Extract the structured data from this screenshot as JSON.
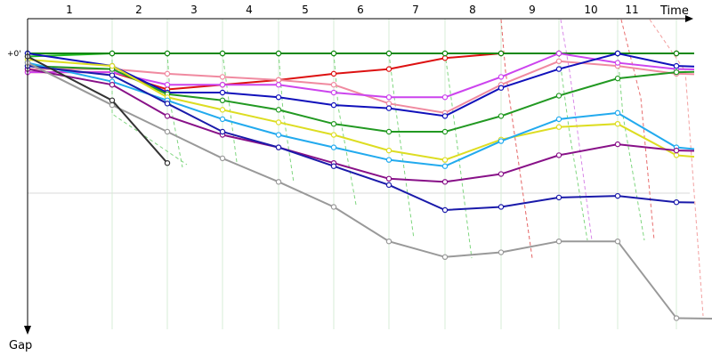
{
  "chart_data": {
    "type": "line",
    "xlabel": "Time",
    "ylabel": "Gap",
    "zero_label": "+0'",
    "lap_labels": [
      "1",
      "2",
      "3",
      "4",
      "5",
      "6",
      "7",
      "8",
      "9",
      "10",
      "11"
    ],
    "grid": true,
    "series": [
      {
        "color": "#22bb22",
        "values": [
          2,
          0,
          0,
          0,
          0,
          0,
          0,
          0,
          0,
          0,
          0,
          0
        ]
      },
      {
        "color": "#dd1111",
        "values": [
          12,
          12,
          23,
          20,
          17,
          13,
          10,
          3,
          0,
          0,
          0,
          0
        ]
      },
      {
        "color": "#118811",
        "values": [
          0,
          0,
          0,
          0,
          0,
          0,
          0,
          0,
          0,
          0,
          0,
          0
        ]
      },
      {
        "color": "#f08aa0",
        "values": [
          10,
          10,
          13,
          15,
          17,
          20,
          32,
          38,
          20,
          5,
          8,
          13
        ]
      },
      {
        "color": "#cc44ee",
        "values": [
          12,
          12,
          20,
          20,
          20,
          25,
          28,
          28,
          15,
          0,
          6,
          10
        ]
      },
      {
        "color": "#1111bb",
        "values": [
          0,
          8,
          25,
          25,
          28,
          33,
          35,
          40,
          22,
          10,
          0,
          8
        ]
      },
      {
        "color": "#229922",
        "values": [
          8,
          10,
          26,
          30,
          36,
          45,
          50,
          50,
          40,
          27,
          16,
          12
        ]
      },
      {
        "color": "#dddd22",
        "values": [
          4,
          8,
          28,
          36,
          44,
          52,
          62,
          68,
          55,
          47,
          45,
          65
        ]
      },
      {
        "color": "#22aaee",
        "values": [
          6,
          18,
          30,
          42,
          52,
          60,
          68,
          72,
          56,
          42,
          38,
          60
        ]
      },
      {
        "color": "#881188",
        "values": [
          10,
          20,
          40,
          52,
          60,
          70,
          80,
          82,
          77,
          65,
          58,
          62
        ]
      },
      {
        "color": "#1a1aaa",
        "values": [
          8,
          14,
          32,
          50,
          60,
          72,
          84,
          100,
          98,
          92,
          91,
          95
        ]
      },
      {
        "color": "#999999",
        "values": [
          6,
          33,
          50,
          67,
          82,
          98,
          120,
          130,
          127,
          120,
          120,
          169
        ]
      },
      {
        "color": "#333333",
        "values": [
          2,
          30,
          70
        ]
      }
    ]
  }
}
